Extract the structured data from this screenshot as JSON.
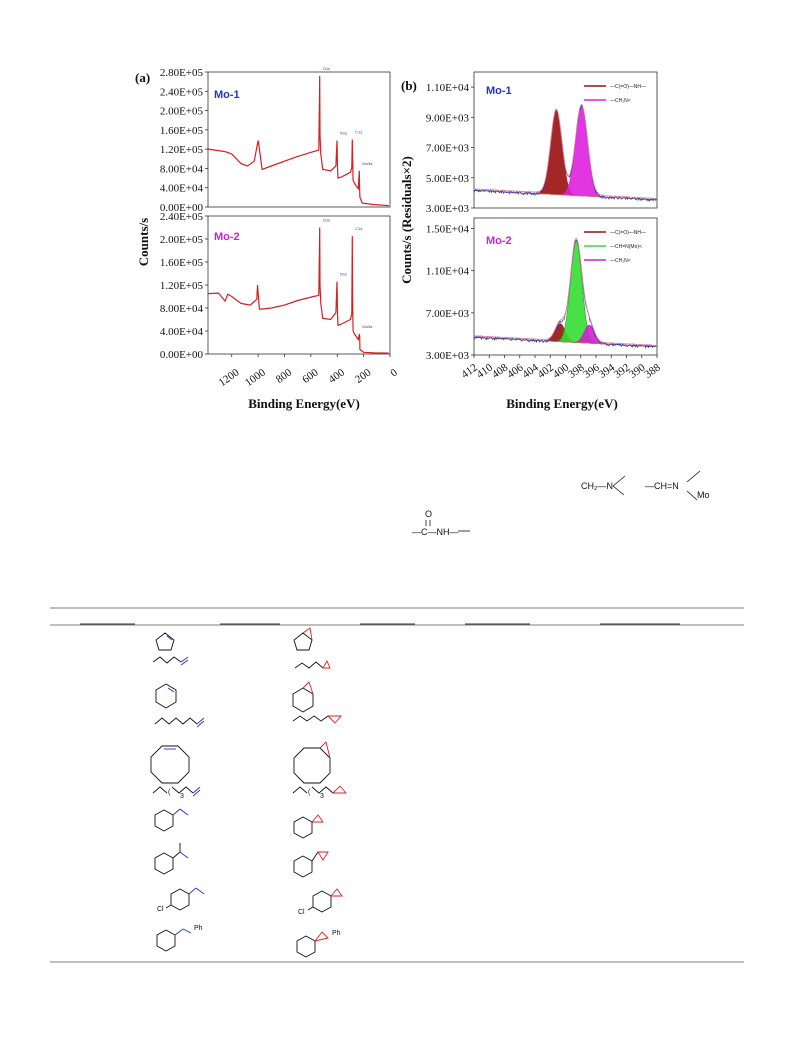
{
  "figure": {
    "panel_a_label": "(a)",
    "panel_b_label": "(b)",
    "xlabel": "Binding Energy(eV)",
    "ylabel_a": "Counts/s",
    "ylabel_b": "Counts/s (Residuals×2)"
  },
  "chart_data": [
    {
      "type": "line",
      "panel": "a-top",
      "sample": "Mo-1",
      "x_ticks": [
        "1200",
        "1000",
        "800",
        "600",
        "400",
        "200",
        "0"
      ],
      "y_ticks": [
        "0.00E+00",
        "4.00E+04",
        "8.00E+04",
        "1.20E+05",
        "1.60E+05",
        "2.00E+05",
        "2.40E+05",
        "2.80E+05"
      ],
      "xlim": [
        1380,
        0
      ],
      "ylim": [
        0,
        280000
      ],
      "peak_labels": [
        "O1s",
        "N1s",
        "C1s",
        "Mo3d"
      ],
      "series": [
        {
          "color": "#d42020",
          "x": [
            1380,
            1250,
            1200,
            1130,
            1080,
            1030,
            1000,
            990,
            970,
            900,
            800,
            700,
            580,
            540,
            533,
            531,
            525,
            510,
            450,
            410,
            402,
            399,
            395,
            370,
            300,
            290,
            286,
            284,
            280,
            260,
            240,
            233,
            231,
            228,
            210,
            120,
            10
          ],
          "y": [
            120000,
            115000,
            110000,
            90000,
            85000,
            95000,
            138000,
            120000,
            78000,
            85000,
            95000,
            105000,
            115000,
            118000,
            272000,
            150000,
            110000,
            78000,
            75000,
            85000,
            138000,
            90000,
            60000,
            62000,
            72000,
            82000,
            140000,
            110000,
            55000,
            45000,
            38000,
            75000,
            45000,
            20000,
            8000,
            5000,
            3000
          ]
        }
      ]
    },
    {
      "type": "line",
      "panel": "a-bottom",
      "sample": "Mo-2",
      "x_ticks": [
        "1200",
        "1000",
        "800",
        "600",
        "400",
        "200",
        "0"
      ],
      "y_ticks": [
        "0.00E+00",
        "4.00E+04",
        "8.00E+04",
        "1.20E+05",
        "1.60E+05",
        "2.00E+05",
        "2.40E+05"
      ],
      "xlim": [
        1380,
        0
      ],
      "ylim": [
        0,
        240000
      ],
      "peak_labels": [
        "O1s",
        "N1s",
        "C1s",
        "Mo3d"
      ],
      "series": [
        {
          "color": "#d42020",
          "x": [
            1380,
            1300,
            1250,
            1230,
            1200,
            1130,
            1060,
            1010,
            1005,
            990,
            970,
            900,
            800,
            700,
            580,
            540,
            533,
            531,
            525,
            510,
            450,
            410,
            402,
            399,
            395,
            370,
            300,
            290,
            286,
            284,
            280,
            270,
            240,
            232,
            230,
            228,
            200,
            120,
            10
          ],
          "y": [
            105000,
            106000,
            92000,
            104000,
            100000,
            88000,
            85000,
            95000,
            120000,
            78000,
            78000,
            80000,
            85000,
            93000,
            100000,
            102000,
            220000,
            120000,
            88000,
            62000,
            60000,
            72000,
            126000,
            80000,
            50000,
            52000,
            60000,
            70000,
            205000,
            100000,
            40000,
            35000,
            25000,
            35000,
            30000,
            8000,
            3000,
            2000,
            1500
          ]
        }
      ]
    },
    {
      "type": "line",
      "panel": "b-top",
      "sample": "Mo-1",
      "x_ticks": [
        "412",
        "410",
        "408",
        "406",
        "404",
        "402",
        "400",
        "398",
        "396",
        "394",
        "392",
        "390",
        "388"
      ],
      "y_ticks": [
        "3.00E+03",
        "5.00E+03",
        "7.00E+03",
        "9.00E+03",
        "1.10E+04"
      ],
      "xlim": [
        412,
        388
      ],
      "ylim": [
        3000,
        12000
      ],
      "legend": [
        "—C(=O)—NH—",
        "—CH₂N<"
      ],
      "series": [
        {
          "color": "#c02020",
          "fill": "#9a1010",
          "center": 401.2,
          "height": 9100,
          "width": 0.75
        },
        {
          "color": "#d020d0",
          "fill": "#e020e0",
          "center": 397.9,
          "height": 9500,
          "width": 0.8
        }
      ]
    },
    {
      "type": "line",
      "panel": "b-bottom",
      "sample": "Mo-2",
      "x_ticks": [
        "412",
        "410",
        "408",
        "406",
        "404",
        "402",
        "400",
        "398",
        "396",
        "394",
        "392",
        "390",
        "388"
      ],
      "y_ticks": [
        "3.00E+03",
        "7.00E+03",
        "1.10E+04",
        "1.50E+04"
      ],
      "xlim": [
        412,
        388
      ],
      "ylim": [
        3000,
        16000
      ],
      "legend": [
        "—C(=O)—NH—",
        "—CH=N(Mo)<",
        "—CH₂N<"
      ],
      "series": [
        {
          "color": "#c02020",
          "fill": "#9a1010",
          "center": 400.7,
          "height": 5500,
          "width": 0.65
        },
        {
          "color": "#20a020",
          "fill": "#33dd33",
          "center": 398.6,
          "height": 13500,
          "width": 0.75
        },
        {
          "color": "#c020c0",
          "fill": "#d020d0",
          "center": 396.9,
          "height": 5500,
          "width": 0.65
        }
      ]
    }
  ],
  "chem": {
    "ch2n": "CH₂—N",
    "chn": "—CH=N",
    "mo": "Mo",
    "amide_o": "O",
    "amide_c": "—C—NH—"
  },
  "table": {
    "subscript_3": "3",
    "ph": "Ph",
    "cl": "Cl"
  }
}
